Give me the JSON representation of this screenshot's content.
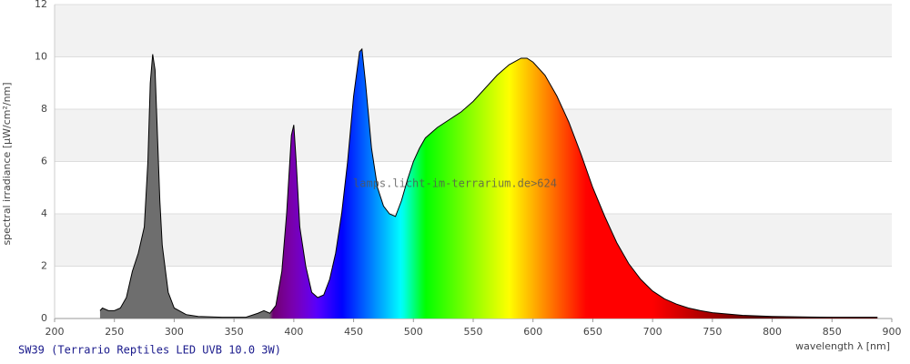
{
  "chart_data": {
    "type": "area",
    "title": "SW39 (Terrario Reptiles LED UVB 10.0 3W)",
    "y_label": "spectral irradiance [µW/cm²/nm]",
    "x_label": "wavelength λ [nm]",
    "watermark": "lamps.licht-im-terrarium.de>624",
    "x": [
      238,
      240,
      245,
      250,
      255,
      260,
      265,
      270,
      275,
      278,
      280,
      282,
      284,
      286,
      288,
      290,
      295,
      300,
      310,
      320,
      340,
      360,
      370,
      375,
      380,
      385,
      390,
      394,
      398,
      400,
      402,
      405,
      410,
      415,
      420,
      425,
      430,
      435,
      440,
      445,
      450,
      455,
      457,
      460,
      465,
      470,
      475,
      480,
      485,
      490,
      495,
      500,
      505,
      510,
      520,
      530,
      540,
      550,
      560,
      570,
      580,
      590,
      595,
      600,
      610,
      620,
      630,
      640,
      650,
      660,
      670,
      680,
      690,
      700,
      710,
      720,
      730,
      740,
      750,
      775,
      800,
      825,
      850,
      870,
      888
    ],
    "values": [
      0.3,
      0.4,
      0.3,
      0.3,
      0.4,
      0.8,
      1.8,
      2.5,
      3.5,
      6,
      9,
      10.1,
      9.5,
      7,
      4.5,
      2.8,
      1.0,
      0.4,
      0.15,
      0.08,
      0.05,
      0.05,
      0.2,
      0.3,
      0.2,
      0.5,
      1.8,
      4,
      7,
      7.4,
      6,
      3.5,
      2,
      1,
      0.8,
      0.9,
      1.5,
      2.5,
      4,
      6,
      8.5,
      10.2,
      10.3,
      9,
      6.5,
      5,
      4.3,
      4.0,
      3.9,
      4.5,
      5.3,
      6.0,
      6.5,
      6.9,
      7.3,
      7.6,
      7.9,
      8.3,
      8.8,
      9.3,
      9.7,
      9.95,
      9.95,
      9.8,
      9.3,
      8.5,
      7.5,
      6.3,
      5.0,
      3.9,
      2.9,
      2.1,
      1.5,
      1.05,
      0.75,
      0.55,
      0.4,
      0.3,
      0.22,
      0.12,
      0.08,
      0.06,
      0.05,
      0.05,
      0.05
    ],
    "xlim": [
      200,
      900
    ],
    "xticks": [
      200,
      250,
      300,
      350,
      400,
      450,
      500,
      550,
      600,
      650,
      700,
      750,
      800,
      850,
      900
    ],
    "ylim": [
      0,
      12
    ],
    "yticks": [
      0,
      2,
      4,
      6,
      8,
      10,
      12
    ],
    "grid": true,
    "fill": "spectrum",
    "line_color": "#000000"
  }
}
